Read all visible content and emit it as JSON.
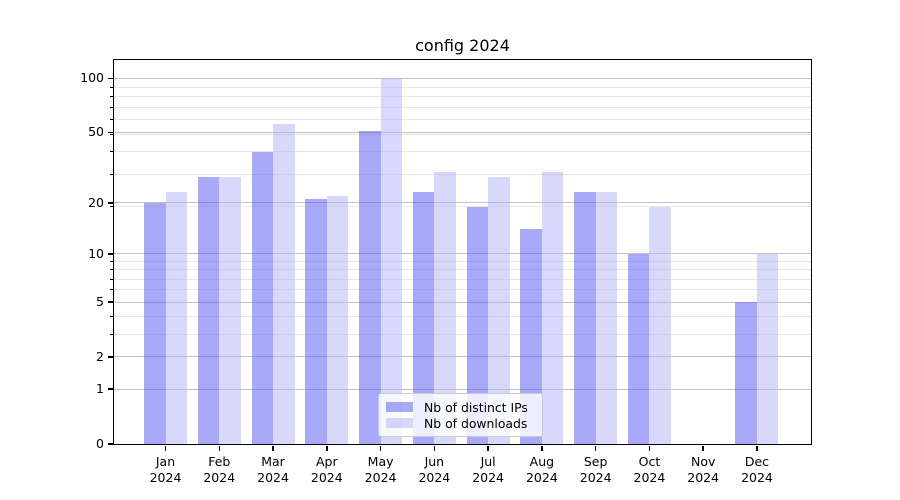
{
  "chart_data": {
    "type": "bar",
    "title": "config 2024",
    "categories": [
      "Jan",
      "Feb",
      "Mar",
      "Apr",
      "May",
      "Jun",
      "Jul",
      "Aug",
      "Sep",
      "Oct",
      "Nov",
      "Dec"
    ],
    "category_year": "2024",
    "series": [
      {
        "name": "Nb of distinct IPs",
        "color": "#5353F5",
        "alpha": 0.5,
        "values": [
          20,
          28,
          39,
          21,
          51,
          23,
          19,
          14,
          23,
          10,
          0,
          5
        ]
      },
      {
        "name": "Nb of downloads",
        "color": "#B1B1F5",
        "alpha": 0.5,
        "values": [
          23,
          28,
          56,
          22,
          100,
          30,
          28,
          30,
          23,
          19,
          0,
          10
        ]
      }
    ],
    "yscale": "log1p",
    "yticks": [
      0,
      1,
      2,
      5,
      10,
      20,
      50,
      100
    ],
    "ylim": [
      0,
      127
    ],
    "xlabel": "",
    "ylabel": "",
    "grid": "both",
    "legend_position": "lower center"
  },
  "colors": {
    "grid_major": "#c3c3c3",
    "grid_minor": "#e7e7e7",
    "spine": "#000000",
    "legend_border": "#c9c9c9"
  }
}
